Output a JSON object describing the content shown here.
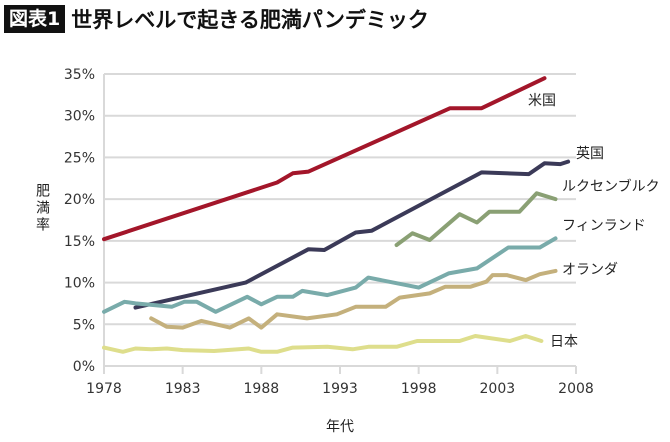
{
  "header": {
    "tag": "図表1",
    "title": "世界レベルで起きる肥満パンデミック"
  },
  "chart_data": {
    "type": "line",
    "title": "世界レベルで起きる肥満パンデミック",
    "xlabel": "年代",
    "ylabel": "肥満率",
    "xlim": [
      1978,
      2008
    ],
    "ylim": [
      0,
      35
    ],
    "xticks": [
      "1978",
      "1983",
      "1988",
      "1993",
      "1998",
      "2003",
      "2008"
    ],
    "yticks": [
      "0%",
      "5%",
      "10%",
      "15%",
      "20%",
      "25%",
      "30%",
      "35%"
    ],
    "grid": true,
    "legend": "inline labels at line ends",
    "series": [
      {
        "name": "米国",
        "color": "#a3162a",
        "x": [
          1978,
          1989,
          1990,
          1991,
          2000,
          2002,
          2006
        ],
        "y": [
          15.2,
          22.0,
          23.1,
          23.3,
          30.9,
          30.9,
          34.5
        ]
      },
      {
        "name": "英国",
        "color": "#3b3a58",
        "x": [
          1980,
          1987,
          1991,
          1992,
          1994,
          1995,
          2002,
          2005,
          2006,
          2007,
          2007.5
        ],
        "y": [
          7.0,
          10.0,
          14.0,
          13.9,
          16.0,
          16.2,
          23.2,
          23.0,
          24.3,
          24.2,
          24.5
        ]
      },
      {
        "name": "ルクセンブルク",
        "color": "#8aa074",
        "x": [
          1996.6,
          1997.6,
          1998.7,
          2000.6,
          2001.7,
          2002.5,
          2004.4,
          2005.5,
          2006.7
        ],
        "y": [
          14.5,
          15.9,
          15.1,
          18.2,
          17.2,
          18.5,
          18.5,
          20.7,
          20.0
        ]
      },
      {
        "name": "フィンランド",
        "color": "#79abaa",
        "x": [
          1978,
          1979.3,
          1980,
          1982.3,
          1983.1,
          1983.9,
          1985.1,
          1987.1,
          1988,
          1989,
          1990,
          1990.6,
          1992.2,
          1994,
          1994.8,
          1998,
          1999.9,
          2001.7,
          2003.7,
          2005.7,
          2006.7
        ],
        "y": [
          6.5,
          7.7,
          7.5,
          7.1,
          7.7,
          7.7,
          6.5,
          8.3,
          7.4,
          8.3,
          8.3,
          9.0,
          8.5,
          9.4,
          10.6,
          9.4,
          11.1,
          11.7,
          14.2,
          14.2,
          15.3
        ]
      },
      {
        "name": "オランダ",
        "color": "#c4b07c",
        "x": [
          1981,
          1982,
          1983,
          1984.2,
          1986,
          1987.2,
          1988,
          1989,
          1990.9,
          1992.8,
          1994,
          1995.9,
          1996.8,
          1998.7,
          1999.7,
          2001.3,
          2002.3,
          2002.7,
          2003.6,
          2004.8,
          2005.7,
          2006.7
        ],
        "y": [
          5.7,
          4.7,
          4.6,
          5.4,
          4.6,
          5.7,
          4.6,
          6.2,
          5.7,
          6.2,
          7.1,
          7.1,
          8.2,
          8.7,
          9.5,
          9.5,
          10.1,
          10.9,
          10.9,
          10.3,
          11.0,
          11.4
        ]
      },
      {
        "name": "日本",
        "color": "#dede8c",
        "x": [
          1978,
          1979.2,
          1980,
          1981,
          1982,
          1983,
          1985,
          1987.2,
          1988,
          1989,
          1990,
          1992.2,
          1993.8,
          1994.8,
          1996.6,
          1997.9,
          2000.6,
          2001.6,
          2003.8,
          2004.8,
          2005.8
        ],
        "y": [
          2.2,
          1.7,
          2.1,
          2.0,
          2.1,
          1.9,
          1.8,
          2.1,
          1.7,
          1.7,
          2.2,
          2.3,
          2.0,
          2.3,
          2.3,
          3.0,
          3.0,
          3.6,
          3.0,
          3.6,
          3.0
        ]
      }
    ]
  }
}
